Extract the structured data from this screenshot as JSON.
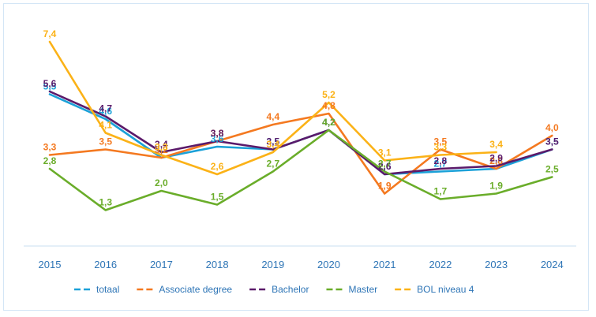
{
  "chart_data": {
    "type": "line",
    "x": [
      "2015",
      "2016",
      "2017",
      "2018",
      "2019",
      "2020",
      "2021",
      "2022",
      "2023",
      "2024"
    ],
    "ylim": [
      0,
      8
    ],
    "grid": false,
    "legend_position": "bottom",
    "series": [
      {
        "name": "totaal",
        "color": "#1ba1d8",
        "values": [
          5.5,
          4.6,
          3.2,
          3.6,
          3.5,
          4.2,
          2.6,
          2.7,
          2.8,
          3.5
        ],
        "labels": [
          "5,5",
          "4,6",
          "3,2",
          "3,6",
          "3,5",
          "4,2",
          "2,6",
          "2,7",
          "2,8",
          "3,5"
        ]
      },
      {
        "name": "Associate degree",
        "color": "#f47920",
        "values": [
          3.3,
          3.5,
          3.2,
          3.8,
          4.4,
          4.8,
          1.9,
          3.5,
          2.8,
          4.0
        ],
        "labels": [
          "3,3",
          "3,5",
          "3,2",
          "3,8",
          "4,4",
          "4,8",
          "1,9",
          "3,5",
          "2,8",
          "4,0"
        ]
      },
      {
        "name": "Bachelor",
        "color": "#5b1a6a",
        "values": [
          5.6,
          4.7,
          3.4,
          3.8,
          3.5,
          4.2,
          2.6,
          2.8,
          2.9,
          3.5
        ],
        "labels": [
          "5,6",
          "4,7",
          "3,4",
          "3,8",
          "3,5",
          "4,2",
          "2,6",
          "2,8",
          "2,9",
          "3,5"
        ]
      },
      {
        "name": "Master",
        "color": "#6aad2a",
        "values": [
          2.8,
          1.3,
          2.0,
          1.5,
          2.7,
          4.2,
          2.7,
          1.7,
          1.9,
          2.5
        ],
        "labels": [
          "2,8",
          "1,3",
          "2,0",
          "1,5",
          "2,7",
          "4,2",
          "2,7",
          "1,7",
          "1,9",
          "2,5"
        ]
      },
      {
        "name": "BOL niveau 4",
        "color": "#fbb217",
        "values": [
          7.4,
          4.1,
          3.3,
          2.6,
          3.4,
          5.2,
          3.1,
          3.3,
          3.4,
          null
        ],
        "labels": [
          "7,4",
          "4,1",
          "3,3",
          "2,6",
          "3,4",
          "5,2",
          "3,1",
          "3,3",
          "3,4",
          null
        ]
      }
    ]
  }
}
